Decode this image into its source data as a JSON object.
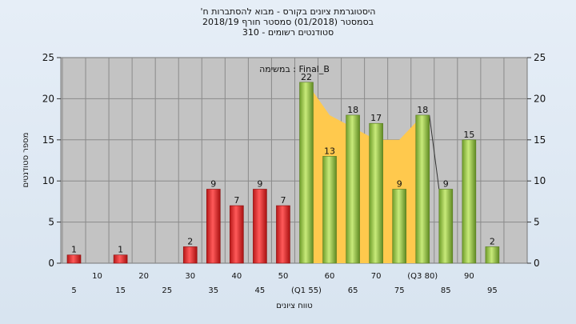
{
  "chart_data": {
    "type": "bar",
    "title_lines": [
      "'היסטוגרמת ציונים בקורס - מבוא להסתברות ח",
      "בסמסטר  (01/2018)  סמסטר חורף  2018/19",
      "310 - סטודנטים רשומים"
    ],
    "ylabel": "מספר סטודנטים",
    "xlabel": "טווח ציונים",
    "annotation": "במשימה : Final_B",
    "ylim": [
      0,
      25
    ],
    "yticks": [
      0,
      5,
      10,
      15,
      20,
      25
    ],
    "x_tick_labels": [
      "5",
      "10",
      "15",
      "20",
      "25",
      "30",
      "35",
      "40",
      "45",
      "50",
      "(Q1 55)",
      "60",
      "65",
      "70",
      "75",
      "(Q3 80)",
      "85",
      "90",
      "95"
    ],
    "x": [
      5,
      10,
      15,
      20,
      25,
      30,
      35,
      40,
      45,
      50,
      55,
      60,
      65,
      70,
      75,
      80,
      85,
      90,
      95
    ],
    "values": [
      1,
      0,
      1,
      0,
      0,
      2,
      9,
      7,
      9,
      7,
      22,
      13,
      18,
      17,
      9,
      18,
      9,
      15,
      2
    ],
    "data_labels": [
      "1",
      "",
      "1",
      "",
      "",
      "2",
      "9",
      "7",
      "9",
      "7",
      "22",
      "13",
      "18",
      "17",
      "9",
      "18",
      "9",
      "15",
      "2"
    ],
    "pass_threshold": 55,
    "area_band": [
      [
        55,
        22
      ],
      [
        60,
        18
      ],
      [
        65,
        16.5
      ],
      [
        70,
        15
      ],
      [
        75,
        15
      ],
      [
        80,
        18
      ]
    ],
    "colors": {
      "fail": "#e03232",
      "pass": "#9ccc55",
      "band": "#ffc94d",
      "plot_bg": "#c3c3c3"
    },
    "grid": true
  }
}
